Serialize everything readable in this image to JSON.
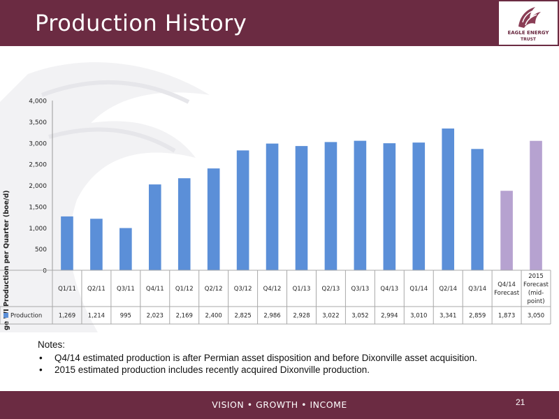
{
  "slide": {
    "title": "Production History",
    "logo_line1": "EAGLE ENERGY",
    "logo_line2": "TRUST",
    "tagline": "VISION  •  GROWTH  •  INCOME",
    "page_number": "21"
  },
  "notes": {
    "heading": "Notes:",
    "items": [
      "Q4/14 estimated production is after Permian asset disposition and before  Dixonville asset acquisition.",
      "2015 estimated production includes recently acquired Dixonville production."
    ]
  },
  "colors": {
    "header": "#6b2b42",
    "actual_bar": "#5b8fd8",
    "forecast_bar": "#b6a2d0"
  },
  "chart_data": {
    "type": "bar",
    "ylabel": "Average WI Production per Quarter (boe/d)",
    "ylim": [
      0,
      4000
    ],
    "yticks": [
      "0",
      "500",
      "1,000",
      "1,500",
      "2,000",
      "2,500",
      "3,000",
      "3,500",
      "4,000"
    ],
    "ytick_values": [
      0,
      500,
      1000,
      1500,
      2000,
      2500,
      3000,
      3500,
      4000
    ],
    "categories": [
      [
        "Q1/11"
      ],
      [
        "Q2/11"
      ],
      [
        "Q3/11"
      ],
      [
        "Q4/11"
      ],
      [
        "Q1/12"
      ],
      [
        "Q2/12"
      ],
      [
        "Q3/12"
      ],
      [
        "Q4/12"
      ],
      [
        "Q1/13"
      ],
      [
        "Q2/13"
      ],
      [
        "Q3/13"
      ],
      [
        "Q4/13"
      ],
      [
        "Q1/14"
      ],
      [
        "Q2/14"
      ],
      [
        "Q3/14"
      ],
      [
        "Q4/14",
        "Forecast"
      ],
      [
        "2015",
        "Forecast",
        "(mid-",
        "point)"
      ]
    ],
    "series": [
      {
        "name": "Production",
        "values": [
          1269,
          1214,
          995,
          2023,
          2169,
          2400,
          2825,
          2986,
          2928,
          3022,
          3052,
          2994,
          3010,
          3341,
          2859,
          1873,
          3050
        ],
        "labels": [
          "1,269",
          "1,214",
          "995",
          "2,023",
          "2,169",
          "2,400",
          "2,825",
          "2,986",
          "2,928",
          "3,022",
          "3,052",
          "2,994",
          "3,010",
          "3,341",
          "2,859",
          "1,873",
          "3,050"
        ],
        "forecast": [
          false,
          false,
          false,
          false,
          false,
          false,
          false,
          false,
          false,
          false,
          false,
          false,
          false,
          false,
          false,
          true,
          true
        ]
      }
    ],
    "data_table": true,
    "legend": "none",
    "grid": false
  }
}
